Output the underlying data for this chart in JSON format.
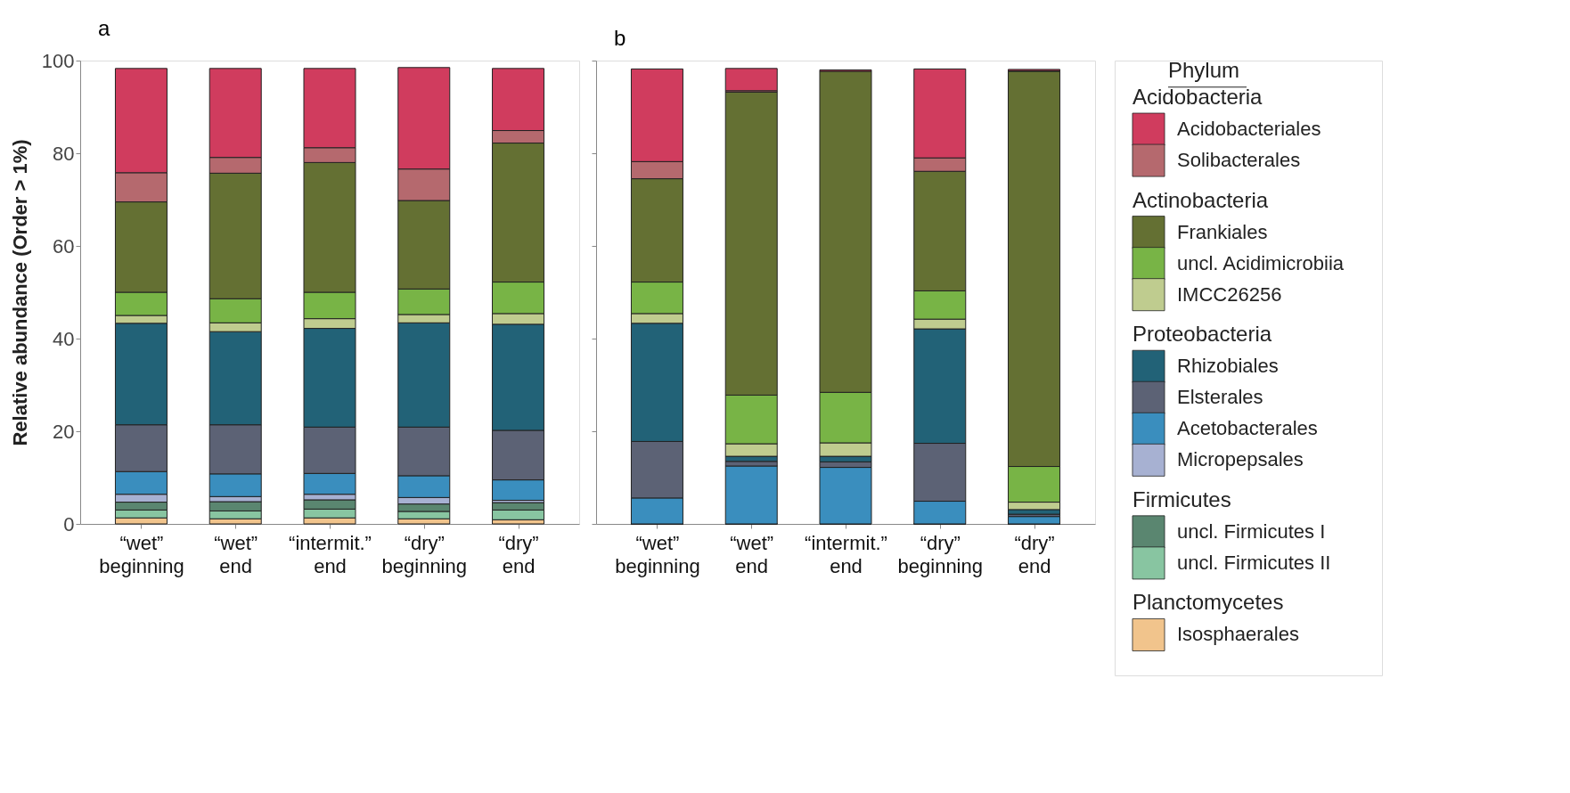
{
  "chart_data": [
    {
      "type": "bar",
      "title": "a",
      "stacked": true,
      "ylabel": "Relative abundance (Order > 1%)",
      "ylim": [
        0,
        100
      ],
      "yticks": [
        0,
        20,
        40,
        60,
        80,
        100
      ],
      "grid": false,
      "legend": "right",
      "legend_title": "Phylum",
      "annotations": [
        "Acidobacteria",
        "Actinobacteria",
        "Proteobacteria",
        "Firmicutes",
        "Planctomycetes"
      ],
      "categories": [
        "“wet” beginning",
        "“wet” end",
        "“intermit.” end",
        "“dry” beginning",
        "“dry” end"
      ],
      "series": [
        {
          "name": "Isosphaerales",
          "color": "#f1c48c",
          "values": [
            1.3,
            1.1,
            1.3,
            1.1,
            0.9
          ]
        },
        {
          "name": "uncl. Firmicutes II",
          "color": "#88c5a1",
          "values": [
            1.7,
            1.7,
            1.9,
            1.6,
            2.1
          ]
        },
        {
          "name": "uncl. Firmicutes I",
          "color": "#5a8670",
          "values": [
            1.7,
            2.0,
            2.0,
            1.6,
            1.6
          ]
        },
        {
          "name": "Micropepsales",
          "color": "#a7b1d2",
          "values": [
            1.7,
            1.1,
            1.2,
            1.4,
            0.5
          ]
        },
        {
          "name": "Acetobacterales",
          "color": "#3a8ebe",
          "values": [
            4.9,
            4.9,
            4.5,
            4.7,
            4.4
          ]
        },
        {
          "name": "Elsterales",
          "color": "#5c6275",
          "values": [
            10.1,
            10.6,
            10.0,
            10.5,
            10.7
          ]
        },
        {
          "name": "Rhizobiales",
          "color": "#226277",
          "values": [
            21.9,
            20.1,
            21.3,
            22.5,
            22.9
          ]
        },
        {
          "name": "IMCC26256",
          "color": "#bfcc8f",
          "values": [
            1.7,
            1.9,
            2.1,
            1.8,
            2.3
          ]
        },
        {
          "name": "uncl. Acidimicrobiia",
          "color": "#78b446",
          "values": [
            5.0,
            5.2,
            5.7,
            5.5,
            6.8
          ]
        },
        {
          "name": "Frankiales",
          "color": "#647033",
          "values": [
            19.5,
            27.1,
            28.0,
            19.1,
            30.0
          ]
        },
        {
          "name": "Solibacterales",
          "color": "#b5696e",
          "values": [
            6.3,
            3.4,
            3.2,
            6.8,
            2.7
          ]
        },
        {
          "name": "Acidobacteriales",
          "color": "#d03c5e",
          "values": [
            22.5,
            19.2,
            17.1,
            21.9,
            13.4
          ]
        }
      ]
    },
    {
      "type": "bar",
      "title": "b",
      "stacked": true,
      "ylim": [
        0,
        100
      ],
      "yticks": [
        0,
        20,
        40,
        60,
        80,
        100
      ],
      "grid": false,
      "tick_labels": "x",
      "categories": [
        "“wet” beginning",
        "“wet” end",
        "“intermit.” end",
        "“dry” beginning",
        "“dry” end"
      ],
      "series": [
        {
          "color": "#f1c48c",
          "values": [
            0,
            0,
            0,
            0,
            0
          ]
        },
        {
          "color": "#88c5a1",
          "values": [
            0,
            0,
            0,
            0,
            0
          ]
        },
        {
          "color": "#5a8670",
          "values": [
            0,
            0,
            0,
            0,
            0
          ]
        },
        {
          "color": "#a7b1d2",
          "values": [
            0,
            0,
            0,
            0,
            0
          ]
        },
        {
          "color": "#3a8ebe",
          "values": [
            5.6,
            12.5,
            12.2,
            4.9,
            1.6
          ]
        },
        {
          "color": "#5c6275",
          "values": [
            12.2,
            1.0,
            1.2,
            12.5,
            0.5
          ]
        },
        {
          "color": "#226277",
          "values": [
            25.5,
            1.1,
            1.2,
            24.7,
            1.0
          ]
        },
        {
          "color": "#bfcc8f",
          "values": [
            2.1,
            2.7,
            2.9,
            2.1,
            1.6
          ]
        },
        {
          "color": "#78b446",
          "values": [
            6.8,
            10.5,
            10.9,
            6.1,
            7.7
          ]
        },
        {
          "color": "#647033",
          "values": [
            22.3,
            65.4,
            69.3,
            25.8,
            85.3
          ]
        },
        {
          "color": "#b5696e",
          "values": [
            3.7,
            0.3,
            null,
            2.9,
            0.1
          ]
        },
        {
          "color": "#d03c5e",
          "values": [
            20.0,
            4.8,
            0.3,
            19.2,
            0.3
          ]
        }
      ]
    }
  ]
}
